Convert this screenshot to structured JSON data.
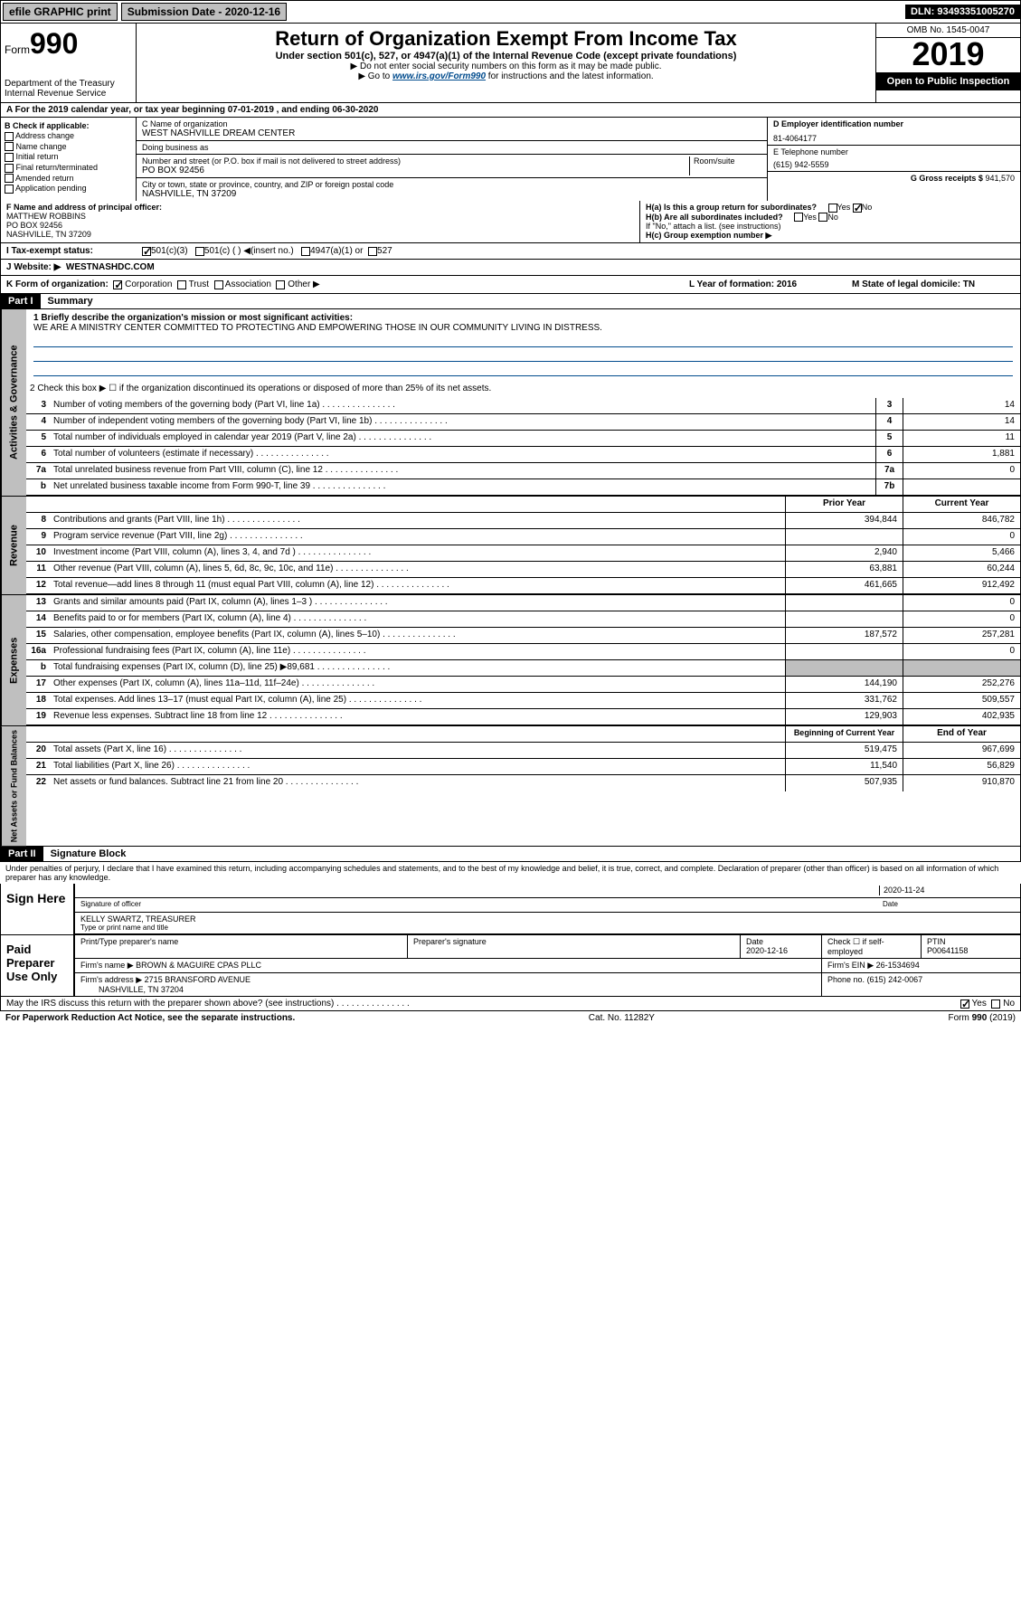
{
  "topbar": {
    "efile": "efile GRAPHIC print",
    "sub_label": "Submission Date - 2020-12-16",
    "dln": "DLN: 93493351005270"
  },
  "header": {
    "form_word": "Form",
    "form_num": "990",
    "dept": "Department of the Treasury\nInternal Revenue Service",
    "title": "Return of Organization Exempt From Income Tax",
    "subtitle": "Under section 501(c), 527, or 4947(a)(1) of the Internal Revenue Code (except private foundations)",
    "note1": "▶ Do not enter social security numbers on this form as it may be made public.",
    "note2_pre": "▶ Go to ",
    "note2_link": "www.irs.gov/Form990",
    "note2_post": " for instructions and the latest information.",
    "omb": "OMB No. 1545-0047",
    "year": "2019",
    "open": "Open to Public Inspection"
  },
  "rowA": "A For the 2019 calendar year, or tax year beginning 07-01-2019   , and ending 06-30-2020",
  "colB": {
    "hdr": "B Check if applicable:",
    "items": [
      "Address change",
      "Name change",
      "Initial return",
      "Final return/terminated",
      "Amended return",
      "Application pending"
    ]
  },
  "colC": {
    "name_lbl": "C Name of organization",
    "name": "WEST NASHVILLE DREAM CENTER",
    "dba_lbl": "Doing business as",
    "dba": "",
    "addr_lbl": "Number and street (or P.O. box if mail is not delivered to street address)",
    "addr": "PO BOX 92456",
    "room_lbl": "Room/suite",
    "city_lbl": "City or town, state or province, country, and ZIP or foreign postal code",
    "city": "NASHVILLE, TN  37209"
  },
  "colD": {
    "ein_lbl": "D Employer identification number",
    "ein": "81-4064177",
    "tel_lbl": "E Telephone number",
    "tel": "(615) 942-5559",
    "gross_lbl": "G Gross receipts $",
    "gross": "941,570"
  },
  "rowF": {
    "lbl": "F  Name and address of principal officer:",
    "name": "MATTHEW ROBBINS",
    "addr1": "PO BOX 92456",
    "addr2": "NASHVILLE, TN  37209"
  },
  "rowH": {
    "ha": "H(a)  Is this a group return for subordinates?",
    "ha_ans": "No",
    "hb": "H(b)  Are all subordinates included?",
    "hb_note": "If \"No,\" attach a list. (see instructions)",
    "hc": "H(c)  Group exemption number ▶"
  },
  "taxStatus": {
    "lbl": "I    Tax-exempt status:",
    "opts": [
      "501(c)(3)",
      "501(c) (  ) ◀(insert no.)",
      "4947(a)(1) or",
      "527"
    ]
  },
  "website": {
    "lbl": "J   Website: ▶",
    "val": "WESTNASHDC.COM"
  },
  "rowK": {
    "lbl": "K Form of organization:",
    "opts": [
      "Corporation",
      "Trust",
      "Association",
      "Other ▶"
    ],
    "L": "L Year of formation: 2016",
    "M": "M State of legal domicile: TN"
  },
  "part1": {
    "hdr": "Part I",
    "title": "Summary",
    "line1_lbl": "1  Briefly describe the organization's mission or most significant activities:",
    "mission": "WE ARE A MINISTRY CENTER COMMITTED TO PROTECTING AND EMPOWERING THOSE IN OUR COMMUNITY LIVING IN DISTRESS.",
    "line2": "2   Check this box ▶ ☐  if the organization discontinued its operations or disposed of more than 25% of its net assets.",
    "govLines": [
      {
        "n": "3",
        "t": "Number of voting members of the governing body (Part VI, line 1a)",
        "b": "3",
        "v": "14"
      },
      {
        "n": "4",
        "t": "Number of independent voting members of the governing body (Part VI, line 1b)",
        "b": "4",
        "v": "14"
      },
      {
        "n": "5",
        "t": "Total number of individuals employed in calendar year 2019 (Part V, line 2a)",
        "b": "5",
        "v": "11"
      },
      {
        "n": "6",
        "t": "Total number of volunteers (estimate if necessary)",
        "b": "6",
        "v": "1,881"
      },
      {
        "n": "7a",
        "t": "Total unrelated business revenue from Part VIII, column (C), line 12",
        "b": "7a",
        "v": "0"
      },
      {
        "n": "b",
        "t": "Net unrelated business taxable income from Form 990-T, line 39",
        "b": "7b",
        "v": ""
      }
    ],
    "colHdrs": {
      "prior": "Prior Year",
      "current": "Current Year"
    },
    "revenue": [
      {
        "n": "8",
        "t": "Contributions and grants (Part VIII, line 1h)",
        "p": "394,844",
        "c": "846,782"
      },
      {
        "n": "9",
        "t": "Program service revenue (Part VIII, line 2g)",
        "p": "",
        "c": "0"
      },
      {
        "n": "10",
        "t": "Investment income (Part VIII, column (A), lines 3, 4, and 7d )",
        "p": "2,940",
        "c": "5,466"
      },
      {
        "n": "11",
        "t": "Other revenue (Part VIII, column (A), lines 5, 6d, 8c, 9c, 10c, and 11e)",
        "p": "63,881",
        "c": "60,244"
      },
      {
        "n": "12",
        "t": "Total revenue—add lines 8 through 11 (must equal Part VIII, column (A), line 12)",
        "p": "461,665",
        "c": "912,492"
      }
    ],
    "expenses": [
      {
        "n": "13",
        "t": "Grants and similar amounts paid (Part IX, column (A), lines 1–3 )",
        "p": "",
        "c": "0"
      },
      {
        "n": "14",
        "t": "Benefits paid to or for members (Part IX, column (A), line 4)",
        "p": "",
        "c": "0"
      },
      {
        "n": "15",
        "t": "Salaries, other compensation, employee benefits (Part IX, column (A), lines 5–10)",
        "p": "187,572",
        "c": "257,281"
      },
      {
        "n": "16a",
        "t": "Professional fundraising fees (Part IX, column (A), line 11e)",
        "p": "",
        "c": "0"
      },
      {
        "n": "b",
        "t": "Total fundraising expenses (Part IX, column (D), line 25) ▶89,681",
        "p": "—",
        "c": "—"
      },
      {
        "n": "17",
        "t": "Other expenses (Part IX, column (A), lines 11a–11d, 11f–24e)",
        "p": "144,190",
        "c": "252,276"
      },
      {
        "n": "18",
        "t": "Total expenses. Add lines 13–17 (must equal Part IX, column (A), line 25)",
        "p": "331,762",
        "c": "509,557"
      },
      {
        "n": "19",
        "t": "Revenue less expenses. Subtract line 18 from line 12",
        "p": "129,903",
        "c": "402,935"
      }
    ],
    "netHdrs": {
      "begin": "Beginning of Current Year",
      "end": "End of Year"
    },
    "netassets": [
      {
        "n": "20",
        "t": "Total assets (Part X, line 16)",
        "p": "519,475",
        "c": "967,699"
      },
      {
        "n": "21",
        "t": "Total liabilities (Part X, line 26)",
        "p": "11,540",
        "c": "56,829"
      },
      {
        "n": "22",
        "t": "Net assets or fund balances. Subtract line 21 from line 20",
        "p": "507,935",
        "c": "910,870"
      }
    ]
  },
  "part2": {
    "hdr": "Part II",
    "title": "Signature Block",
    "decl": "Under penalties of perjury, I declare that I have examined this return, including accompanying schedules and statements, and to the best of my knowledge and belief, it is true, correct, and complete. Declaration of preparer (other than officer) is based on all information of which preparer has any knowledge.",
    "sign_here": "Sign Here",
    "sig_officer": "Signature of officer",
    "sig_date": "2020-11-24",
    "date_lbl": "Date",
    "officer_name": "KELLY SWARTZ, TREASURER",
    "type_name": "Type or print name and title",
    "paid": "Paid Preparer Use Only",
    "prep_name_lbl": "Print/Type preparer's name",
    "prep_sig_lbl": "Preparer's signature",
    "prep_date_lbl": "Date",
    "prep_date": "2020-12-16",
    "check_if": "Check ☐ if self-employed",
    "ptin_lbl": "PTIN",
    "ptin": "P00641158",
    "firm_name_lbl": "Firm's name    ▶",
    "firm_name": "BROWN & MAGUIRE CPAS PLLC",
    "firm_ein_lbl": "Firm's EIN ▶",
    "firm_ein": "26-1534694",
    "firm_addr_lbl": "Firm's address ▶",
    "firm_addr": "2715 BRANSFORD AVENUE",
    "firm_city": "NASHVILLE, TN  37204",
    "phone_lbl": "Phone no.",
    "phone": "(615) 242-0067",
    "discuss": "May the IRS discuss this return with the preparer shown above? (see instructions)",
    "discuss_ans": "Yes"
  },
  "footer": {
    "pra": "For Paperwork Reduction Act Notice, see the separate instructions.",
    "cat": "Cat. No. 11282Y",
    "form": "Form 990 (2019)"
  },
  "sideLabels": {
    "gov": "Activities & Governance",
    "rev": "Revenue",
    "exp": "Expenses",
    "net": "Net Assets or Fund Balances"
  }
}
